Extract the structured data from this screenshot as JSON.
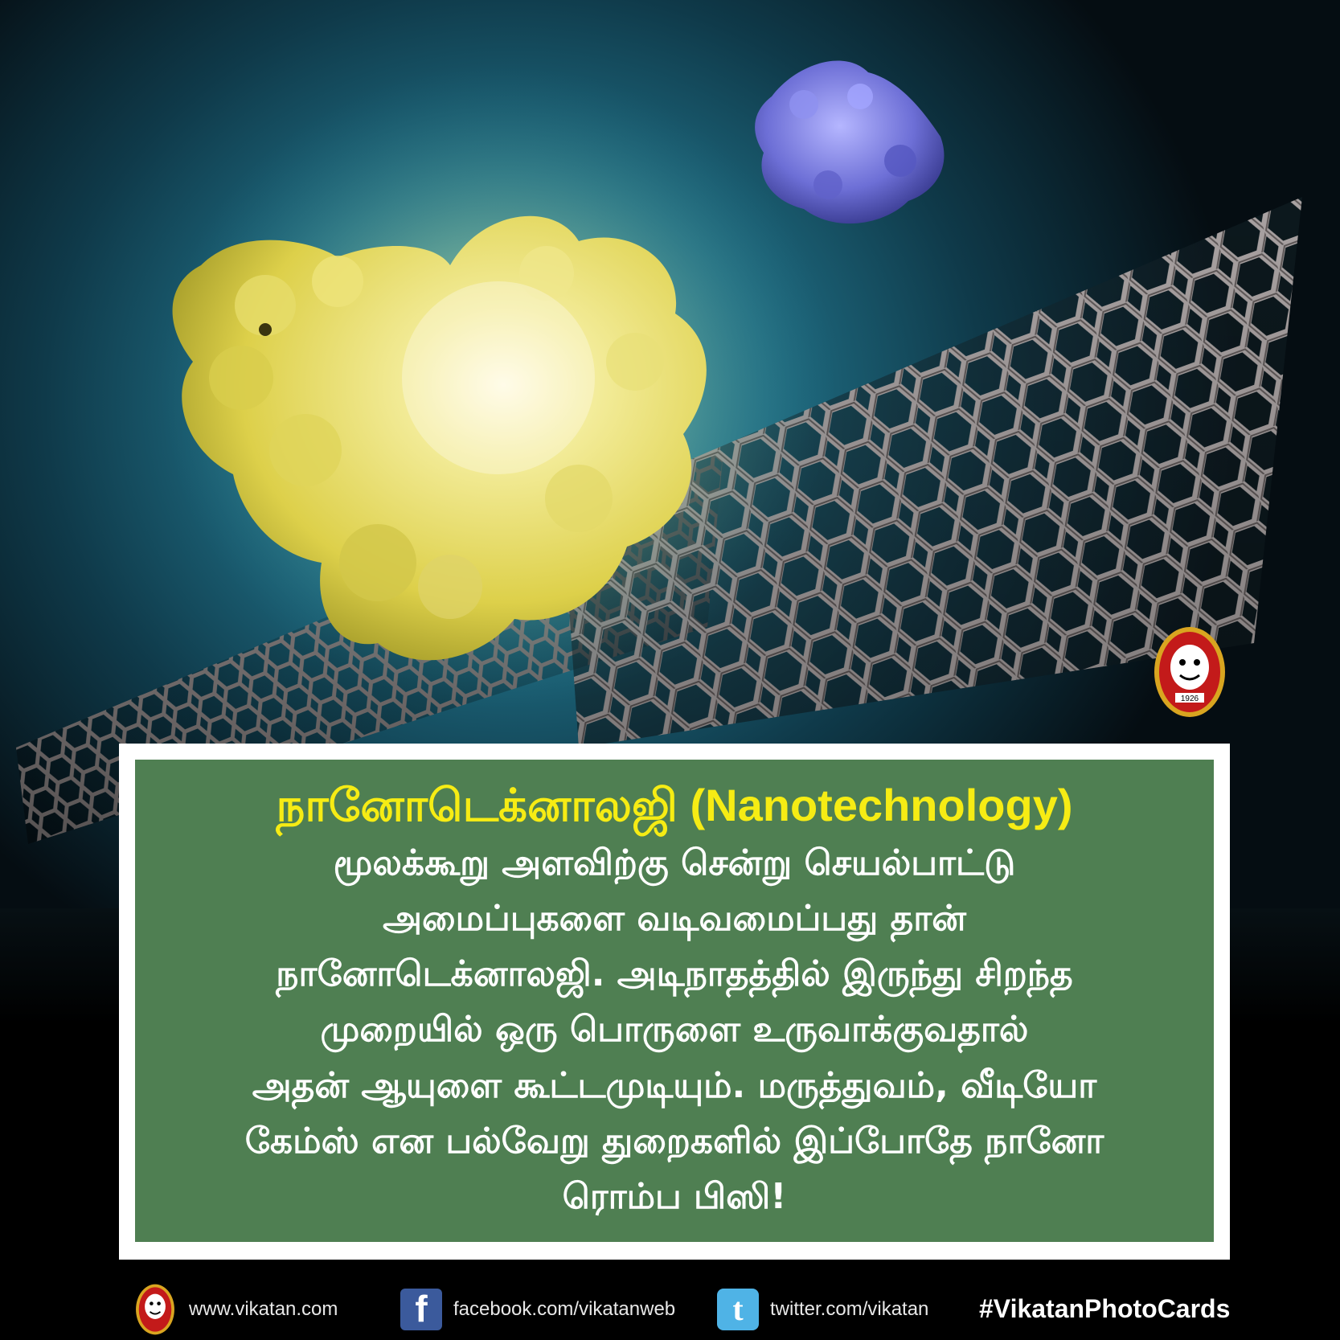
{
  "card": {
    "headline_tamil": "நானோடெக்னாலஜி",
    "headline_english": "(Nanotechnology)",
    "body_lines": [
      "மூலக்கூறு அளவிற்கு சென்று செயல்பாட்டு",
      "அமைப்புகளை வடிவமைப்பது தான்",
      "நானோடெக்னாலஜி. அடிநாதத்தில் இருந்து சிறந்த",
      "முறையில் ஒரு பொருளை உருவாக்குவதால்",
      "அதன் ஆயுளை கூட்டமுடியும். மருத்துவம், வீடியோ",
      "கேம்ஸ் என பல்வேறு துறைகளில் இப்போதே நானோ",
      "ரொம்ப பிஸி!"
    ]
  },
  "logo": {
    "text": "1926"
  },
  "footer": {
    "website": "www.vikatan.com",
    "facebook": "facebook.com/vikatanweb",
    "twitter": "twitter.com/vikatan",
    "hashtag": "#VikatanPhotoCards",
    "facebook_icon": "f",
    "twitter_icon": "t"
  },
  "colors": {
    "panel_green": "#4f7f52",
    "headline_yellow": "#f6ec14",
    "background_teal": "#1f6c82",
    "yellow_molecule": "#e8df5a",
    "blue_molecule": "#6d6fd6",
    "nanotube": "#9a9494"
  },
  "icons": [
    "vikatan-logo-icon",
    "facebook-icon",
    "twitter-icon"
  ]
}
